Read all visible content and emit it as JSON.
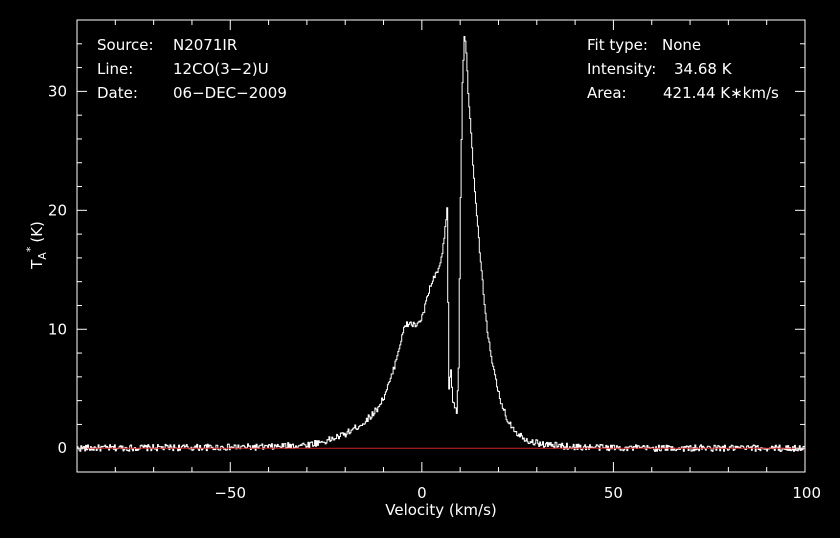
{
  "chart_data": {
    "type": "line",
    "title": "",
    "xlabel": "Velocity (km/s)",
    "ylabel": "T",
    "ylabel_sub": "A",
    "ylabel_sup": "*",
    "ylabel_unit": "(K)",
    "xlim": [
      -90,
      100
    ],
    "ylim": [
      -2,
      36
    ],
    "x_ticks": [
      -50,
      0,
      50,
      100
    ],
    "x_tick_labels": [
      "−50",
      "0",
      "50",
      "100"
    ],
    "y_ticks": [
      0,
      10,
      20,
      30
    ],
    "y_tick_labels": [
      "0",
      "10",
      "20",
      "30"
    ],
    "grid": false,
    "baseline": 0,
    "colors": {
      "spectrum": "#ffffff",
      "baseline": "#cc2222",
      "axes": "#ffffff",
      "background": "#000000"
    },
    "series": [
      {
        "x": [
          -90,
          -40,
          -35,
          -30,
          -25,
          -20,
          -18,
          -15,
          -12,
          -10,
          -8,
          -6,
          -5,
          -4,
          -3,
          -2,
          -1,
          0,
          1,
          2,
          3,
          4,
          5,
          6,
          6.5,
          7,
          7.5,
          8,
          9,
          9.5,
          10,
          10.5,
          11,
          11.5,
          12,
          13,
          14,
          15,
          16,
          17,
          18,
          20,
          22,
          25,
          28,
          32,
          40,
          60,
          100
        ],
        "values": [
          0,
          0.1,
          0.2,
          0.3,
          0.6,
          1.2,
          1.6,
          2.2,
          3.2,
          4.3,
          6.0,
          8.5,
          9.8,
          10.4,
          10.5,
          10.3,
          10.5,
          11.0,
          12.2,
          13.5,
          14.2,
          14.8,
          15.8,
          18.5,
          20.0,
          5.0,
          6.5,
          4.0,
          3.0,
          7.0,
          21.0,
          31.0,
          34.68,
          33.5,
          30.0,
          25.0,
          20.5,
          16.5,
          13.0,
          10.0,
          7.5,
          4.5,
          2.5,
          1.2,
          0.6,
          0.3,
          0.1,
          0,
          0
        ]
      }
    ],
    "annotations_left": [
      {
        "key": "Source:",
        "value": "N2071IR"
      },
      {
        "key": "Line:",
        "value": "12CO(3−2)U"
      },
      {
        "key": "Date:",
        "value": "06−DEC−2009"
      }
    ],
    "annotations_right": [
      {
        "key": "Fit type:",
        "value": "None"
      },
      {
        "key": "Intensity:",
        "value": "34.68 K"
      },
      {
        "key": "Area:",
        "value": "421.44 K∗km/s"
      }
    ]
  }
}
